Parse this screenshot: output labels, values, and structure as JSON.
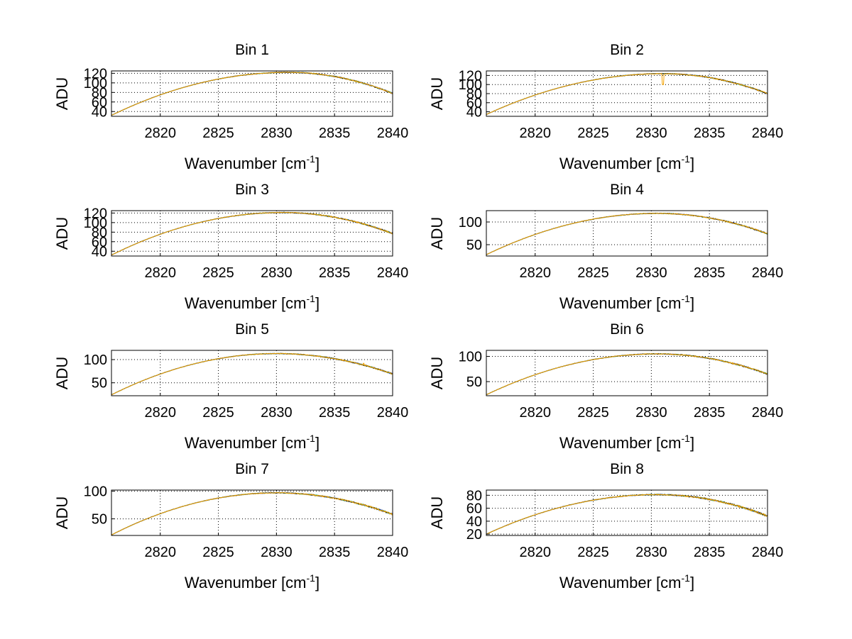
{
  "chart_data": [
    {
      "type": "line",
      "title": "Bin 1",
      "xlabel_main": "Wavenumber [cm",
      "xlabel_sup": "-1",
      "xlabel_end": "]",
      "ylabel": "ADU",
      "xlim": [
        2815.8,
        2840
      ],
      "ylim": [
        30,
        125
      ],
      "xticks": [
        2820,
        2825,
        2830,
        2835,
        2840
      ],
      "yticks": [
        40,
        60,
        80,
        100,
        120
      ],
      "peak_x": 2831,
      "peak_y": 122,
      "start_y": 32,
      "end_y": 78,
      "dip": null,
      "series": [
        {
          "name": "blue",
          "color": "#1f3fd6"
        },
        {
          "name": "green",
          "color": "#22a84a"
        },
        {
          "name": "black",
          "color": "#222222"
        },
        {
          "name": "orange",
          "color": "#f5a300"
        }
      ]
    },
    {
      "type": "line",
      "title": "Bin 2",
      "xlabel_main": "Wavenumber [cm",
      "xlabel_sup": "-1",
      "xlabel_end": "]",
      "ylabel": "ADU",
      "xlim": [
        2815.8,
        2840
      ],
      "ylim": [
        30,
        130
      ],
      "xticks": [
        2820,
        2825,
        2830,
        2835,
        2840
      ],
      "yticks": [
        40,
        60,
        80,
        100,
        120
      ],
      "peak_x": 2831,
      "peak_y": 124,
      "start_y": 34,
      "end_y": 80,
      "dip": {
        "x": 2831,
        "y": 100
      },
      "series": [
        {
          "name": "blue",
          "color": "#1f3fd6"
        },
        {
          "name": "green",
          "color": "#22a84a"
        },
        {
          "name": "black",
          "color": "#222222"
        },
        {
          "name": "orange",
          "color": "#f5a300"
        }
      ]
    },
    {
      "type": "line",
      "title": "Bin 3",
      "xlabel_main": "Wavenumber [cm",
      "xlabel_sup": "-1",
      "xlabel_end": "]",
      "ylabel": "ADU",
      "xlim": [
        2815.8,
        2840
      ],
      "ylim": [
        30,
        125
      ],
      "xticks": [
        2820,
        2825,
        2830,
        2835,
        2840
      ],
      "yticks": [
        40,
        60,
        80,
        100,
        120
      ],
      "peak_x": 2830.5,
      "peak_y": 121,
      "start_y": 32,
      "end_y": 77,
      "dip": null,
      "series": [
        {
          "name": "blue",
          "color": "#1f3fd6"
        },
        {
          "name": "green",
          "color": "#22a84a"
        },
        {
          "name": "black",
          "color": "#222222"
        },
        {
          "name": "orange",
          "color": "#f5a300"
        }
      ]
    },
    {
      "type": "line",
      "title": "Bin 4",
      "xlabel_main": "Wavenumber [cm",
      "xlabel_sup": "-1",
      "xlabel_end": "]",
      "ylabel": "ADU",
      "xlim": [
        2815.8,
        2840
      ],
      "ylim": [
        25,
        125
      ],
      "xticks": [
        2820,
        2825,
        2830,
        2835,
        2840
      ],
      "yticks": [
        50,
        100
      ],
      "peak_x": 2830.5,
      "peak_y": 119,
      "start_y": 28,
      "end_y": 74,
      "dip": null,
      "series": [
        {
          "name": "blue",
          "color": "#1f3fd6"
        },
        {
          "name": "green",
          "color": "#22a84a"
        },
        {
          "name": "black",
          "color": "#222222"
        },
        {
          "name": "orange",
          "color": "#f5a300"
        }
      ]
    },
    {
      "type": "line",
      "title": "Bin 5",
      "xlabel_main": "Wavenumber [cm",
      "xlabel_sup": "-1",
      "xlabel_end": "]",
      "ylabel": "ADU",
      "xlim": [
        2815.8,
        2840
      ],
      "ylim": [
        22,
        120
      ],
      "xticks": [
        2820,
        2825,
        2830,
        2835,
        2840
      ],
      "yticks": [
        50,
        100
      ],
      "peak_x": 2830,
      "peak_y": 113,
      "start_y": 24,
      "end_y": 69,
      "dip": {
        "x": 2837.5,
        "y": 92
      },
      "series": [
        {
          "name": "blue",
          "color": "#1f3fd6"
        },
        {
          "name": "green",
          "color": "#22a84a"
        },
        {
          "name": "black",
          "color": "#222222"
        },
        {
          "name": "orange",
          "color": "#f5a300"
        }
      ]
    },
    {
      "type": "line",
      "title": "Bin 6",
      "xlabel_main": "Wavenumber [cm",
      "xlabel_sup": "-1",
      "xlabel_end": "]",
      "ylabel": "ADU",
      "xlim": [
        2815.8,
        2840
      ],
      "ylim": [
        22,
        112
      ],
      "xticks": [
        2820,
        2825,
        2830,
        2835,
        2840
      ],
      "yticks": [
        50,
        100
      ],
      "peak_x": 2830.5,
      "peak_y": 105,
      "start_y": 24,
      "end_y": 65,
      "dip": {
        "x": 2837.5,
        "y": 84
      },
      "series": [
        {
          "name": "blue",
          "color": "#1f3fd6"
        },
        {
          "name": "green",
          "color": "#22a84a"
        },
        {
          "name": "black",
          "color": "#222222"
        },
        {
          "name": "orange",
          "color": "#f5a300"
        }
      ]
    },
    {
      "type": "line",
      "title": "Bin 7",
      "xlabel_main": "Wavenumber [cm",
      "xlabel_sup": "-1",
      "xlabel_end": "]",
      "ylabel": "ADU",
      "xlim": [
        2815.8,
        2840
      ],
      "ylim": [
        20,
        102
      ],
      "xticks": [
        2820,
        2825,
        2830,
        2835,
        2840
      ],
      "yticks": [
        50,
        100
      ],
      "peak_x": 2830,
      "peak_y": 97,
      "start_y": 21,
      "end_y": 58,
      "dip": {
        "x": 2837.5,
        "y": 76
      },
      "series": [
        {
          "name": "blue",
          "color": "#1f3fd6"
        },
        {
          "name": "green",
          "color": "#22a84a"
        },
        {
          "name": "black",
          "color": "#222222"
        },
        {
          "name": "orange",
          "color": "#f5a300"
        }
      ]
    },
    {
      "type": "line",
      "title": "Bin 8",
      "xlabel_main": "Wavenumber [cm",
      "xlabel_sup": "-1",
      "xlabel_end": "]",
      "ylabel": "ADU",
      "xlim": [
        2815.8,
        2840
      ],
      "ylim": [
        18,
        88
      ],
      "xticks": [
        2820,
        2825,
        2830,
        2835,
        2840
      ],
      "yticks": [
        20,
        40,
        60,
        80
      ],
      "peak_x": 2830.5,
      "peak_y": 81,
      "start_y": 20,
      "end_y": 48,
      "dip": null,
      "series": [
        {
          "name": "blue",
          "color": "#1f3fd6"
        },
        {
          "name": "green",
          "color": "#22a84a"
        },
        {
          "name": "black",
          "color": "#222222"
        },
        {
          "name": "orange",
          "color": "#f5a300"
        }
      ]
    }
  ]
}
